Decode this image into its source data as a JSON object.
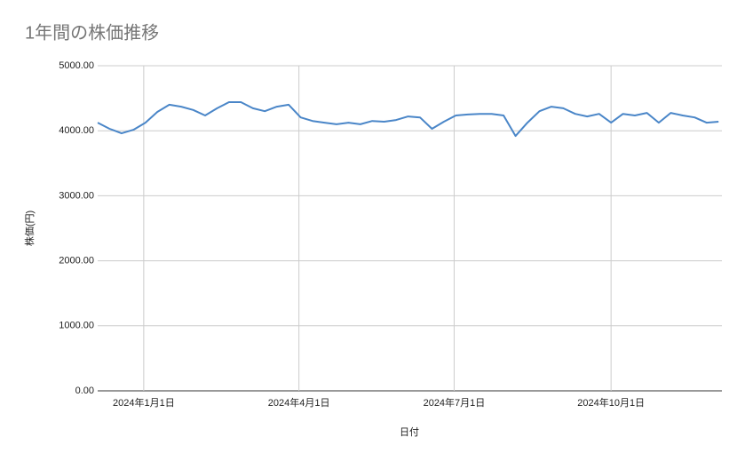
{
  "chart_data": {
    "type": "line",
    "title": "1年間の株価推移",
    "x_label": "日付",
    "y_label": "株価(円)",
    "x": [
      "2023-12-05",
      "2023-12-12",
      "2023-12-19",
      "2023-12-26",
      "2024-01-02",
      "2024-01-09",
      "2024-01-16",
      "2024-01-23",
      "2024-01-30",
      "2024-02-06",
      "2024-02-13",
      "2024-02-20",
      "2024-02-27",
      "2024-03-05",
      "2024-03-12",
      "2024-03-19",
      "2024-03-26",
      "2024-04-02",
      "2024-04-09",
      "2024-04-16",
      "2024-04-23",
      "2024-04-30",
      "2024-05-07",
      "2024-05-14",
      "2024-05-21",
      "2024-05-28",
      "2024-06-04",
      "2024-06-11",
      "2024-06-18",
      "2024-06-25",
      "2024-07-02",
      "2024-07-09",
      "2024-07-16",
      "2024-07-23",
      "2024-07-30",
      "2024-08-06",
      "2024-08-13",
      "2024-08-20",
      "2024-08-27",
      "2024-09-03",
      "2024-09-10",
      "2024-09-17",
      "2024-09-24",
      "2024-10-01",
      "2024-10-08",
      "2024-10-15",
      "2024-10-22",
      "2024-10-29",
      "2024-11-05",
      "2024-11-12",
      "2024-11-19",
      "2024-11-26",
      "2024-12-03"
    ],
    "series": [
      {
        "name": "株価",
        "color": "#4a86c8",
        "values": [
          4125,
          4030,
          3960,
          4015,
          4125,
          4290,
          4400,
          4370,
          4320,
          4235,
          4345,
          4440,
          4440,
          4345,
          4300,
          4370,
          4400,
          4205,
          4150,
          4125,
          4100,
          4125,
          4100,
          4150,
          4140,
          4165,
          4220,
          4205,
          4030,
          4140,
          4235,
          4250,
          4260,
          4260,
          4235,
          3920,
          4125,
          4300,
          4370,
          4345,
          4260,
          4220,
          4260,
          4125,
          4260,
          4235,
          4275,
          4125,
          4275,
          4235,
          4205,
          4125,
          4140
        ]
      }
    ],
    "xlim": [
      "2023-12-05",
      "2024-12-05"
    ],
    "xticks": [
      {
        "value": "2024-01-01",
        "label": "2024年1月1日"
      },
      {
        "value": "2024-04-01",
        "label": "2024年4月1日"
      },
      {
        "value": "2024-07-01",
        "label": "2024年7月1日"
      },
      {
        "value": "2024-10-01",
        "label": "2024年10月1日"
      }
    ],
    "ylim": [
      0,
      5000
    ],
    "yticks": [
      {
        "value": 0,
        "label": "0.00"
      },
      {
        "value": 1000,
        "label": "1000.00"
      },
      {
        "value": 2000,
        "label": "2000.00"
      },
      {
        "value": 3000,
        "label": "3000.00"
      },
      {
        "value": 4000,
        "label": "4000.00"
      },
      {
        "value": 5000,
        "label": "5000.00"
      }
    ],
    "grid": true
  }
}
